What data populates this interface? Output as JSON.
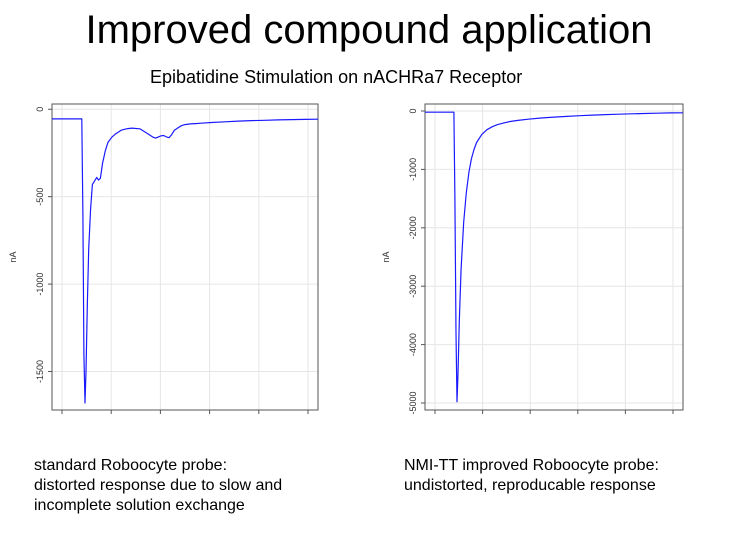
{
  "title": "Improved compound application",
  "subtitle": "Epibatidine Stimulation on nACHRa7 Receptor",
  "captions": {
    "left": [
      "standard Roboocyte probe:",
      "distorted response due to slow and",
      "incomplete solution exchange"
    ],
    "right": [
      "NMI-TT improved Roboocyte probe:",
      "undistorted, reproducable response"
    ]
  },
  "colors": {
    "trace": "#1a1aff",
    "grid": "#e6e6e6",
    "frame": "#555555"
  },
  "chart_data": [
    {
      "type": "line",
      "ylabel": "nA",
      "xlim": [
        0,
        100
      ],
      "ylim": [
        -1720,
        30
      ],
      "yticks": [
        0,
        -500,
        -1000,
        -1500
      ],
      "ytick_labels": [
        "0",
        "-500",
        "-1000",
        "-1500"
      ],
      "series": [
        {
          "x": [
            0,
            5,
            10,
            11.2,
            11.6,
            12.0,
            12.4,
            12.8,
            13.3,
            13.8,
            14.5,
            15.2,
            16.0,
            16.8,
            17.5,
            18.2,
            19.0,
            20.0,
            21.0,
            22.5,
            24,
            26,
            28,
            30,
            33,
            36,
            38,
            39,
            40,
            41,
            42,
            43,
            44,
            45,
            46,
            47,
            48,
            49,
            50,
            52,
            54,
            56,
            60,
            65,
            70,
            75,
            80,
            85,
            90,
            95,
            100
          ],
          "y": [
            -55,
            -55,
            -55,
            -55,
            -600,
            -1400,
            -1680,
            -1500,
            -1100,
            -800,
            -570,
            -430,
            -410,
            -390,
            -405,
            -395,
            -310,
            -240,
            -190,
            -160,
            -140,
            -120,
            -112,
            -108,
            -112,
            -140,
            -160,
            -165,
            -158,
            -152,
            -150,
            -158,
            -163,
            -145,
            -120,
            -110,
            -100,
            -92,
            -88,
            -84,
            -82,
            -80,
            -76,
            -72,
            -68,
            -65,
            -63,
            -61,
            -59,
            -58,
            -57
          ]
        }
      ]
    },
    {
      "type": "line",
      "ylabel": "nA",
      "xlim": [
        0,
        100
      ],
      "ylim": [
        -5120,
        120
      ],
      "yticks": [
        0,
        -1000,
        -2000,
        -3000,
        -4000,
        -5000
      ],
      "ytick_labels": [
        "0",
        "-1000",
        "-2000",
        "-3000",
        "-4000",
        "-5000"
      ],
      "series": [
        {
          "x": [
            0,
            5,
            10,
            11.2,
            11.6,
            12.0,
            12.4,
            12.8,
            13.3,
            14,
            15,
            16,
            17,
            18,
            19,
            20,
            22,
            24,
            26,
            28,
            30,
            33,
            36,
            40,
            45,
            50,
            55,
            60,
            65,
            70,
            75,
            80,
            85,
            90,
            95,
            100
          ],
          "y": [
            -20,
            -20,
            -20,
            -20,
            -1500,
            -3800,
            -4980,
            -4500,
            -3600,
            -2700,
            -1900,
            -1400,
            -1050,
            -820,
            -660,
            -540,
            -400,
            -320,
            -270,
            -235,
            -210,
            -180,
            -160,
            -140,
            -120,
            -105,
            -92,
            -80,
            -70,
            -62,
            -55,
            -48,
            -42,
            -37,
            -33,
            -30
          ]
        }
      ]
    }
  ]
}
